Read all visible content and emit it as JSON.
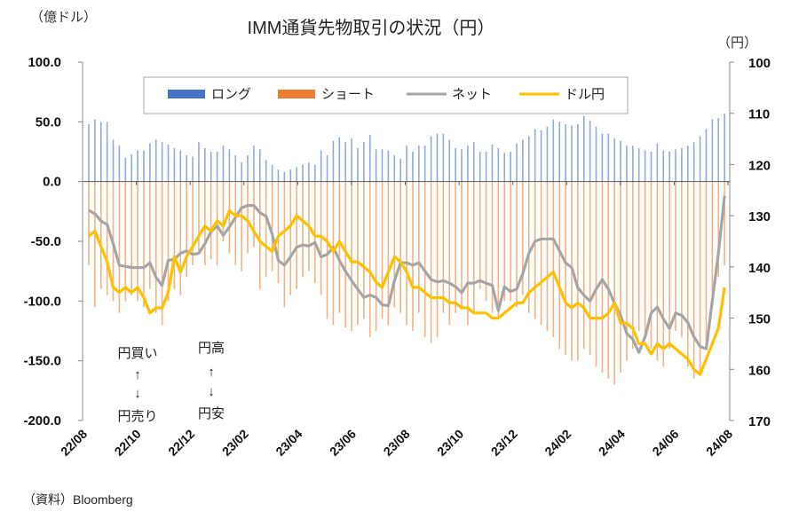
{
  "chart_data": {
    "type": "bar+line",
    "title": "IMM通貨先物取引の状況（円）",
    "left_axis": {
      "unit_label": "（億ドル）",
      "range": [
        -200,
        100
      ],
      "ticks": [
        100,
        50,
        0,
        -50,
        -100,
        -150,
        -200
      ],
      "tick_labels": [
        "100.0",
        "50.0",
        "0.0",
        "-50.0",
        "-100.0",
        "-150.0",
        "-200.0"
      ]
    },
    "right_axis": {
      "unit_label": "（円）",
      "range": [
        100,
        170
      ],
      "inverted": true,
      "ticks": [
        100,
        110,
        120,
        130,
        140,
        150,
        160,
        170
      ],
      "tick_labels": [
        "100",
        "110",
        "120",
        "130",
        "140",
        "150",
        "160",
        "170"
      ]
    },
    "x_axis": {
      "tick_labels": [
        "22/08",
        "22/10",
        "22/12",
        "23/02",
        "23/04",
        "23/06",
        "23/08",
        "23/10",
        "23/12",
        "24/02",
        "24/04",
        "24/06",
        "24/08"
      ],
      "frequency": "weekly"
    },
    "legend": {
      "placement": "top-center",
      "entries": [
        {
          "label": "ロング",
          "type": "bar",
          "color": "#4472C4"
        },
        {
          "label": "ショート",
          "type": "bar",
          "color": "#ED7D31"
        },
        {
          "label": "ネット",
          "type": "line",
          "color": "#A5A5A5"
        },
        {
          "label": "ドル円",
          "type": "line",
          "color": "#FFC000"
        }
      ]
    },
    "series": [
      {
        "name": "ロング",
        "axis": "left",
        "values": [
          48,
          52,
          50,
          50,
          35,
          30,
          20,
          23,
          26,
          26,
          32,
          35,
          33,
          31,
          28,
          26,
          22,
          21,
          33,
          28,
          25,
          25,
          30,
          27,
          22,
          16,
          22,
          30,
          27,
          18,
          14,
          10,
          8,
          10,
          12,
          14,
          16,
          14,
          26,
          22,
          34,
          37,
          33,
          36,
          28,
          33,
          39,
          27,
          27,
          26,
          22,
          19,
          30,
          25,
          30,
          30,
          38,
          40,
          40,
          35,
          28,
          27,
          30,
          33,
          25,
          25,
          31,
          28,
          24,
          25,
          32,
          35,
          38,
          44,
          43,
          46,
          52,
          50,
          48,
          47,
          48,
          55,
          51,
          46,
          40,
          40,
          36,
          34,
          30,
          30,
          28,
          26,
          25,
          32,
          26,
          25,
          27,
          28,
          30,
          33,
          38,
          44,
          52,
          53,
          57
        ]
      },
      {
        "name": "ショート",
        "axis": "left",
        "values": [
          -70,
          -105,
          -90,
          -95,
          -100,
          -110,
          -100,
          -95,
          -100,
          -105,
          -90,
          -110,
          -120,
          -100,
          -90,
          -95,
          -80,
          -70,
          -60,
          -70,
          -65,
          -70,
          -50,
          -60,
          -70,
          -75,
          -60,
          -55,
          -90,
          -80,
          -75,
          -85,
          -105,
          -95,
          -90,
          -80,
          -75,
          -85,
          -95,
          -115,
          -120,
          -110,
          -122,
          -125,
          -120,
          -115,
          -130,
          -125,
          -115,
          -120,
          -105,
          -110,
          -120,
          -125,
          -110,
          -130,
          -135,
          -130,
          -110,
          -120,
          -110,
          -105,
          -120,
          -110,
          -90,
          -100,
          -110,
          -115,
          -100,
          -100,
          -105,
          -95,
          -110,
          -115,
          -120,
          -125,
          -130,
          -140,
          -145,
          -150,
          -150,
          -140,
          -145,
          -155,
          -160,
          -165,
          -170,
          -160,
          -150,
          -140,
          -125,
          -130,
          -140,
          -150,
          -155,
          -140,
          -125,
          -130,
          -155,
          -165,
          -160,
          -140,
          -100,
          -80,
          -70
        ]
      },
      {
        "name": "ネット",
        "axis": "left",
        "values": [
          -24,
          -27,
          -33,
          -36,
          -52,
          -70,
          -71,
          -72,
          -72,
          -72,
          -68,
          -80,
          -87,
          -66,
          -65,
          -60,
          -58,
          -61,
          -60,
          -52,
          -42,
          -37,
          -45,
          -38,
          -30,
          -22,
          -20,
          -20,
          -26,
          -29,
          -44,
          -66,
          -70,
          -63,
          -55,
          -53,
          -54,
          -51,
          -63,
          -61,
          -55,
          -66,
          -75,
          -83,
          -90,
          -97,
          -95,
          -97,
          -103,
          -104,
          -83,
          -68,
          -68,
          -70,
          -68,
          -75,
          -82,
          -84,
          -83,
          -85,
          -88,
          -93,
          -85,
          -85,
          -83,
          -85,
          -87,
          -108,
          -88,
          -92,
          -90,
          -77,
          -60,
          -50,
          -48,
          -48,
          -48,
          -58,
          -68,
          -72,
          -89,
          -95,
          -100,
          -90,
          -82,
          -90,
          -102,
          -112,
          -127,
          -132,
          -143,
          -130,
          -110,
          -105,
          -115,
          -123,
          -110,
          -112,
          -118,
          -130,
          -138,
          -140,
          -100,
          -60,
          -12
        ]
      },
      {
        "name": "ドル円",
        "axis": "right",
        "values": [
          134,
          133,
          136,
          139,
          144,
          145,
          144,
          145,
          144,
          146,
          149,
          148,
          148,
          145,
          138,
          141,
          138,
          136,
          134,
          132,
          133,
          131,
          132,
          129,
          130,
          130,
          131,
          133,
          135,
          136,
          137,
          134,
          133,
          132,
          130,
          131,
          132,
          134,
          134,
          135,
          137,
          135,
          137,
          139,
          139,
          140,
          141,
          143,
          144,
          141,
          138,
          139,
          141,
          144,
          144,
          145,
          146,
          146,
          146,
          147,
          147,
          148,
          148,
          149,
          149,
          149,
          150,
          150,
          149,
          148,
          147,
          147,
          145,
          144,
          143,
          142,
          141,
          144,
          147,
          148,
          147,
          148,
          150,
          150,
          150,
          149,
          147,
          151,
          151,
          152,
          155,
          155,
          157,
          155,
          156,
          155,
          156,
          157,
          158,
          160,
          161,
          158,
          155,
          152,
          144
        ]
      }
    ]
  },
  "annotations": {
    "left_top": "円買い",
    "left_bottom": "円売り",
    "right_top": "円高",
    "right_bottom": "円安",
    "arrow_up": "↑",
    "arrow_down": "↓"
  },
  "source": "（資料）Bloomberg"
}
